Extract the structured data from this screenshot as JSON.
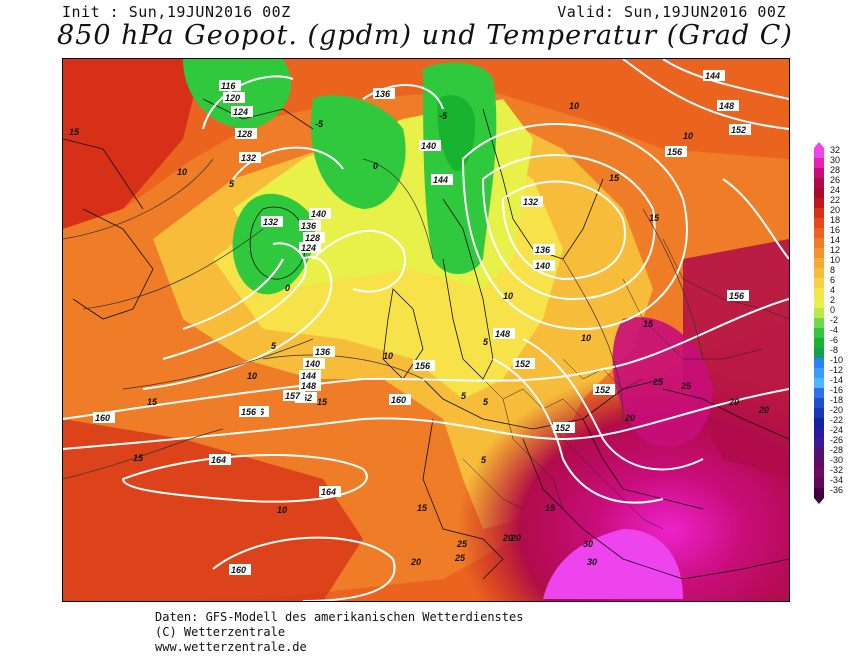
{
  "header": {
    "init": "Init : Sun,19JUN2016 00Z",
    "valid": "Valid: Sun,19JUN2016 00Z",
    "title": "850 hPa Geopot. (gpdm) und Temperatur (Grad C)"
  },
  "legend": {
    "values": [
      "32",
      "30",
      "28",
      "26",
      "24",
      "22",
      "20",
      "18",
      "16",
      "14",
      "12",
      "10",
      "8",
      "6",
      "4",
      "2",
      "0",
      "-2",
      "-4",
      "-6",
      "-8",
      "-10",
      "-12",
      "-14",
      "-16",
      "-18",
      "-20",
      "-22",
      "-24",
      "-26",
      "-28",
      "-30",
      "-32",
      "-34",
      "-36"
    ],
    "colors": [
      "#ee44ee",
      "#e81fb5",
      "#c80d7a",
      "#b00c4a",
      "#a80c2c",
      "#c01818",
      "#d63018",
      "#e44a1a",
      "#ea6420",
      "#ef7c26",
      "#f2922c",
      "#f5a833",
      "#f6bc3a",
      "#f7d043",
      "#f8e24a",
      "#e8f04a",
      "#b8e84a",
      "#70d84a",
      "#30c83c",
      "#18b430",
      "#10a050",
      "#2a80ff",
      "#3a9cff",
      "#4ab8ff",
      "#3070e8",
      "#2050d0",
      "#1838b8",
      "#1024a0",
      "#2818a8",
      "#401890",
      "#501078",
      "#600a68",
      "#700a5a",
      "#600858",
      "#400040"
    ]
  },
  "map": {
    "geopot_labels": [
      "116",
      "120",
      "124",
      "128",
      "132",
      "136",
      "140",
      "144",
      "148",
      "152",
      "156",
      "157",
      "160",
      "164",
      "132",
      "136",
      "140",
      "144",
      "148",
      "152",
      "156",
      "160",
      "164",
      "152",
      "156",
      "136",
      "128",
      "124",
      "140",
      "132",
      "136",
      "144",
      "152",
      "156",
      "160",
      "140",
      "144",
      "148",
      "152",
      "156"
    ],
    "temp_labels": [
      "15",
      "10",
      "5",
      "0",
      "-5",
      "5",
      "10",
      "15",
      "20",
      "25",
      "30",
      "-5",
      "0",
      "5",
      "10",
      "15",
      "20",
      "25",
      "10",
      "15",
      "10",
      "15",
      "5",
      "5",
      "5",
      "10",
      "15",
      "20",
      "20",
      "25",
      "15",
      "10",
      "15",
      "10",
      "20",
      "25",
      "30",
      "20",
      "15"
    ]
  },
  "footer": {
    "line1": "Daten: GFS-Modell des amerikanischen Wetterdienstes",
    "line2": "(C) Wetterzentrale",
    "line3": "www.wetterzentrale.de"
  }
}
